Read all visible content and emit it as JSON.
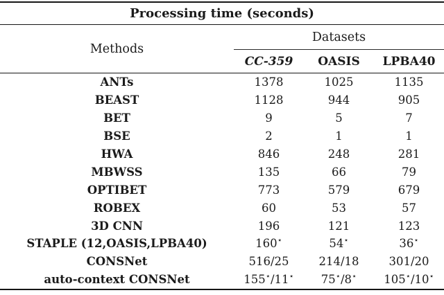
{
  "table": {
    "title": "Processing time (seconds)",
    "methods_header": "Methods",
    "datasets_header": "Datasets",
    "columns": [
      "CC-359",
      "OASIS",
      "LPBA40"
    ],
    "rows": [
      {
        "method": "ANTs",
        "values": [
          "1378",
          "1025",
          "1135"
        ]
      },
      {
        "method": "BEAST",
        "values": [
          "1128",
          "944",
          "905"
        ]
      },
      {
        "method": "BET",
        "values": [
          "9",
          "5",
          "7"
        ]
      },
      {
        "method": "BSE",
        "values": [
          "2",
          "1",
          "1"
        ]
      },
      {
        "method": "HWA",
        "values": [
          "846",
          "248",
          "281"
        ]
      },
      {
        "method": "MBWSS",
        "values": [
          "135",
          "66",
          "79"
        ]
      },
      {
        "method": "OPTIBET",
        "values": [
          "773",
          "579",
          "679"
        ]
      },
      {
        "method": "ROBEX",
        "values": [
          "60",
          "53",
          "57"
        ]
      },
      {
        "method": "3D CNN",
        "values": [
          "196",
          "121",
          "123"
        ]
      },
      {
        "method": "STAPLE (12,OASIS,LPBA40)",
        "values": [
          "160⋆",
          "54⋆",
          "36⋆"
        ]
      },
      {
        "method": "CONSNet",
        "values": [
          "516/25",
          "214/18",
          "301/20"
        ]
      },
      {
        "method": "auto-context CONSNet",
        "values": [
          "155⋆/11⋆",
          "75⋆/8⋆",
          "105⋆/10⋆"
        ]
      }
    ]
  },
  "chart_data": {
    "type": "table",
    "title": "Processing time (seconds)",
    "row_header": "Methods",
    "column_group": "Datasets",
    "columns": [
      "CC-359",
      "OASIS",
      "LPBA40"
    ],
    "rows": [
      [
        "ANTs",
        "1378",
        "1025",
        "1135"
      ],
      [
        "BEAST",
        "1128",
        "944",
        "905"
      ],
      [
        "BET",
        "9",
        "5",
        "7"
      ],
      [
        "BSE",
        "2",
        "1",
        "1"
      ],
      [
        "HWA",
        "846",
        "248",
        "281"
      ],
      [
        "MBWSS",
        "135",
        "66",
        "79"
      ],
      [
        "OPTIBET",
        "773",
        "579",
        "679"
      ],
      [
        "ROBEX",
        "60",
        "53",
        "57"
      ],
      [
        "3D CNN",
        "196",
        "121",
        "123"
      ],
      [
        "STAPLE (12,OASIS,LPBA40)",
        "160⋆",
        "54⋆",
        "36⋆"
      ],
      [
        "CONSNet",
        "516/25",
        "214/18",
        "301/20"
      ],
      [
        "auto-context CONSNet",
        "155⋆/11⋆",
        "75⋆/8⋆",
        "105⋆/10⋆"
      ]
    ]
  }
}
